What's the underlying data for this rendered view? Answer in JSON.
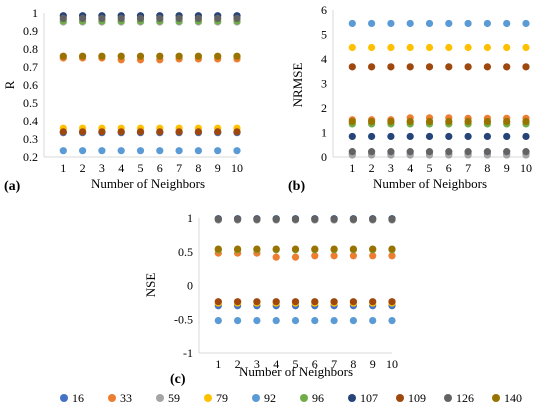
{
  "series_names": [
    "16",
    "33",
    "59",
    "79",
    "92",
    "96",
    "107",
    "109",
    "126",
    "140"
  ],
  "series_colors": [
    "#4472C4",
    "#ED7D31",
    "#A5A5A5",
    "#FFC000",
    "#5B9BD5",
    "#70AD47",
    "#264478",
    "#9E480E",
    "#636363",
    "#997300"
  ],
  "chart_data": [
    {
      "type": "scatter",
      "panel_label": "(a)",
      "xlabel": "Number of Neighbors",
      "ylabel": "R",
      "x": [
        1,
        2,
        3,
        4,
        5,
        6,
        7,
        8,
        9,
        10
      ],
      "xlim": [
        0,
        10
      ],
      "ylim": [
        0.2,
        1
      ],
      "yticks": [
        0.2,
        0.3,
        0.4,
        0.5,
        0.6,
        0.7,
        0.8,
        0.9,
        1
      ],
      "ytick_labels": [
        "0.2",
        "0.3",
        "0.4",
        "0.5",
        "0.6",
        "0.7",
        "0.8",
        "0.9",
        "1"
      ],
      "legend": "bottom",
      "grid": false,
      "series": [
        {
          "name": "16",
          "values": [
            0.335,
            0.335,
            0.335,
            0.335,
            0.335,
            0.335,
            0.335,
            0.335,
            0.335,
            0.335
          ]
        },
        {
          "name": "33",
          "values": [
            0.75,
            0.75,
            0.75,
            0.74,
            0.74,
            0.74,
            0.745,
            0.745,
            0.745,
            0.745
          ]
        },
        {
          "name": "59",
          "values": [
            0.95,
            0.95,
            0.95,
            0.95,
            0.95,
            0.95,
            0.95,
            0.95,
            0.95,
            0.95
          ]
        },
        {
          "name": "79",
          "values": [
            0.36,
            0.36,
            0.36,
            0.36,
            0.36,
            0.36,
            0.36,
            0.36,
            0.36,
            0.36
          ]
        },
        {
          "name": "92",
          "values": [
            0.235,
            0.235,
            0.235,
            0.235,
            0.235,
            0.235,
            0.235,
            0.235,
            0.235,
            0.235
          ]
        },
        {
          "name": "96",
          "values": [
            0.955,
            0.955,
            0.955,
            0.955,
            0.955,
            0.955,
            0.955,
            0.955,
            0.955,
            0.955
          ]
        },
        {
          "name": "107",
          "values": [
            0.985,
            0.985,
            0.985,
            0.985,
            0.985,
            0.985,
            0.985,
            0.985,
            0.985,
            0.985
          ]
        },
        {
          "name": "109",
          "values": [
            0.34,
            0.34,
            0.34,
            0.34,
            0.34,
            0.34,
            0.34,
            0.34,
            0.34,
            0.34
          ]
        },
        {
          "name": "126",
          "values": [
            0.97,
            0.97,
            0.97,
            0.97,
            0.97,
            0.97,
            0.97,
            0.97,
            0.97,
            0.97
          ]
        },
        {
          "name": "140",
          "values": [
            0.76,
            0.76,
            0.76,
            0.76,
            0.76,
            0.76,
            0.76,
            0.76,
            0.76,
            0.76
          ]
        }
      ]
    },
    {
      "type": "scatter",
      "panel_label": "(b)",
      "xlabel": "Number of Neighbors",
      "ylabel": "NRMSE",
      "x": [
        1,
        2,
        3,
        4,
        5,
        6,
        7,
        8,
        9,
        10
      ],
      "xlim": [
        0,
        10
      ],
      "ylim": [
        0,
        6
      ],
      "yticks": [
        0,
        1,
        2,
        3,
        4,
        5,
        6
      ],
      "ytick_labels": [
        "0",
        "1",
        "2",
        "3",
        "4",
        "5",
        "6"
      ],
      "legend": "bottom",
      "grid": false,
      "series": [
        {
          "name": "16",
          "values": [
            0.12,
            0.12,
            0.12,
            0.12,
            0.12,
            0.12,
            0.12,
            0.12,
            0.12,
            0.12
          ]
        },
        {
          "name": "33",
          "values": [
            1.52,
            1.52,
            1.52,
            1.6,
            1.6,
            1.6,
            1.58,
            1.58,
            1.58,
            1.58
          ]
        },
        {
          "name": "59",
          "values": [
            0.08,
            0.08,
            0.08,
            0.08,
            0.08,
            0.08,
            0.08,
            0.08,
            0.08,
            0.08
          ]
        },
        {
          "name": "79",
          "values": [
            4.47,
            4.47,
            4.47,
            4.47,
            4.47,
            4.47,
            4.47,
            4.47,
            4.47,
            4.47
          ]
        },
        {
          "name": "92",
          "values": [
            5.45,
            5.45,
            5.45,
            5.45,
            5.45,
            5.45,
            5.45,
            5.45,
            5.45,
            5.45
          ]
        },
        {
          "name": "96",
          "values": [
            1.35,
            1.35,
            1.35,
            1.35,
            1.35,
            1.35,
            1.35,
            1.35,
            1.35,
            1.35
          ]
        },
        {
          "name": "107",
          "values": [
            0.84,
            0.84,
            0.84,
            0.84,
            0.84,
            0.84,
            0.84,
            0.84,
            0.84,
            0.84
          ]
        },
        {
          "name": "109",
          "values": [
            3.68,
            3.68,
            3.68,
            3.68,
            3.68,
            3.68,
            3.68,
            3.68,
            3.68,
            3.68
          ]
        },
        {
          "name": "126",
          "values": [
            0.22,
            0.22,
            0.22,
            0.22,
            0.22,
            0.22,
            0.22,
            0.22,
            0.22,
            0.22
          ]
        },
        {
          "name": "140",
          "values": [
            1.45,
            1.45,
            1.45,
            1.45,
            1.45,
            1.45,
            1.45,
            1.45,
            1.45,
            1.45
          ]
        }
      ]
    },
    {
      "type": "scatter",
      "panel_label": "(c)",
      "xlabel": "Number of Neighbors",
      "ylabel": "NSE",
      "x": [
        1,
        2,
        3,
        4,
        5,
        6,
        7,
        8,
        9,
        10
      ],
      "xlim": [
        0,
        10
      ],
      "ylim": [
        -1,
        1
      ],
      "yticks": [
        -1,
        -0.5,
        0,
        0.5,
        1
      ],
      "ytick_labels": [
        "-1",
        "-0.5",
        "0",
        "0.5",
        "1"
      ],
      "legend": "bottom",
      "grid": false,
      "series": [
        {
          "name": "16",
          "values": [
            -0.3,
            -0.3,
            -0.3,
            -0.3,
            -0.3,
            -0.3,
            -0.3,
            -0.3,
            -0.3,
            -0.3
          ]
        },
        {
          "name": "33",
          "values": [
            0.48,
            0.48,
            0.48,
            0.42,
            0.42,
            0.44,
            0.44,
            0.44,
            0.44,
            0.44
          ]
        },
        {
          "name": "59",
          "values": [
            0.97,
            0.97,
            0.97,
            0.97,
            0.97,
            0.97,
            0.97,
            0.97,
            0.97,
            0.97
          ]
        },
        {
          "name": "79",
          "values": [
            -0.26,
            -0.26,
            -0.26,
            -0.26,
            -0.26,
            -0.26,
            -0.26,
            -0.26,
            -0.26,
            -0.26
          ]
        },
        {
          "name": "92",
          "values": [
            -0.52,
            -0.52,
            -0.52,
            -0.52,
            -0.52,
            -0.52,
            -0.52,
            -0.52,
            -0.52,
            -0.52
          ]
        },
        {
          "name": "96",
          "values": [
            0.53,
            0.53,
            0.53,
            0.53,
            0.53,
            0.53,
            0.53,
            0.53,
            0.53,
            0.53
          ]
        },
        {
          "name": "107",
          "values": [
            0.99,
            0.99,
            0.99,
            0.99,
            0.99,
            0.99,
            0.99,
            0.99,
            0.99,
            0.99
          ]
        },
        {
          "name": "109",
          "values": [
            -0.24,
            -0.24,
            -0.24,
            -0.24,
            -0.24,
            -0.24,
            -0.24,
            -0.24,
            -0.24,
            -0.24
          ]
        },
        {
          "name": "126",
          "values": [
            0.98,
            0.98,
            0.98,
            0.98,
            0.98,
            0.98,
            0.98,
            0.98,
            0.98,
            0.98
          ]
        },
        {
          "name": "140",
          "values": [
            0.54,
            0.54,
            0.54,
            0.54,
            0.54,
            0.54,
            0.54,
            0.54,
            0.54,
            0.54
          ]
        }
      ]
    }
  ]
}
